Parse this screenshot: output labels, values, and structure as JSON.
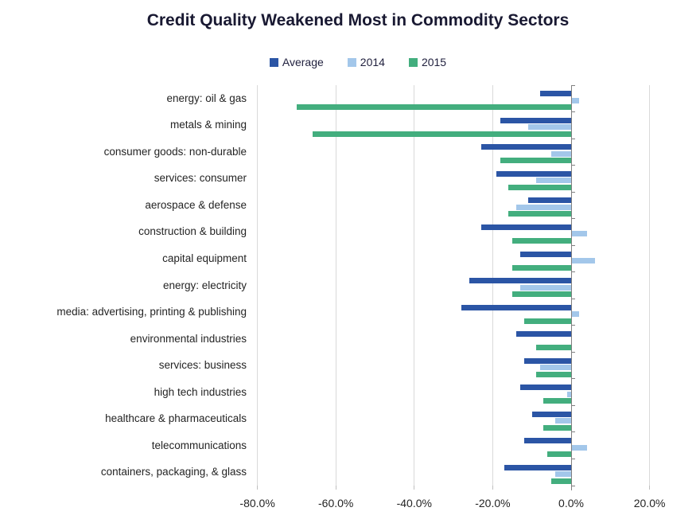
{
  "title": "Credit Quality Weakened Most in Commodity Sectors",
  "legend": [
    {
      "label": "Average",
      "color": "#2b55a5"
    },
    {
      "label": "2014",
      "color": "#a3c7ea"
    },
    {
      "label": "2015",
      "color": "#43ae7e"
    }
  ],
  "colors": {
    "series_average": "#2b55a5",
    "series_2014": "#a3c7ea",
    "series_2015": "#43ae7e",
    "gridline": "#d9d9d9",
    "zero_axis": "#808080",
    "title_text": "#191932",
    "label_text": "#242424"
  },
  "chart_data": {
    "type": "bar",
    "orientation": "horizontal",
    "title": "Credit Quality Weakened Most in Commodity Sectors",
    "unit": "%",
    "grid": true,
    "legend_position": "top",
    "xlim": [
      -81,
      30
    ],
    "x_ticks": [
      {
        "value": -80,
        "label": "-80.0%"
      },
      {
        "value": -60,
        "label": "-60.0%"
      },
      {
        "value": -40,
        "label": "-40.0%"
      },
      {
        "value": -20,
        "label": "-20.0%"
      },
      {
        "value": 0,
        "label": "0.0%"
      },
      {
        "value": 20,
        "label": "20.0%"
      }
    ],
    "categories": [
      "energy: oil & gas",
      "metals & mining",
      "consumer goods: non-durable",
      "services: consumer",
      "aerospace & defense",
      "construction & building",
      "capital equipment",
      "energy: electricity",
      "media: advertising, printing & publishing",
      "environmental industries",
      "services: business",
      "high tech industries",
      "healthcare & pharmaceuticals",
      "telecommunications",
      "containers, packaging, & glass"
    ],
    "series": [
      {
        "name": "Average",
        "color": "#2b55a5",
        "values": [
          -8,
          -18,
          -23,
          -19,
          -11,
          -23,
          -13,
          -26,
          -28,
          -14,
          -12,
          -13,
          -10,
          -12,
          -17
        ]
      },
      {
        "name": "2014",
        "color": "#a3c7ea",
        "values": [
          2,
          -11,
          -5,
          -9,
          -14,
          4,
          6,
          -13,
          2,
          0,
          -8,
          -1,
          -4,
          4,
          -4
        ]
      },
      {
        "name": "2015",
        "color": "#43ae7e",
        "values": [
          -70,
          -66,
          -18,
          -16,
          -16,
          -15,
          -15,
          -15,
          -12,
          -9,
          -9,
          -7,
          -7,
          -6,
          -5
        ]
      }
    ]
  }
}
